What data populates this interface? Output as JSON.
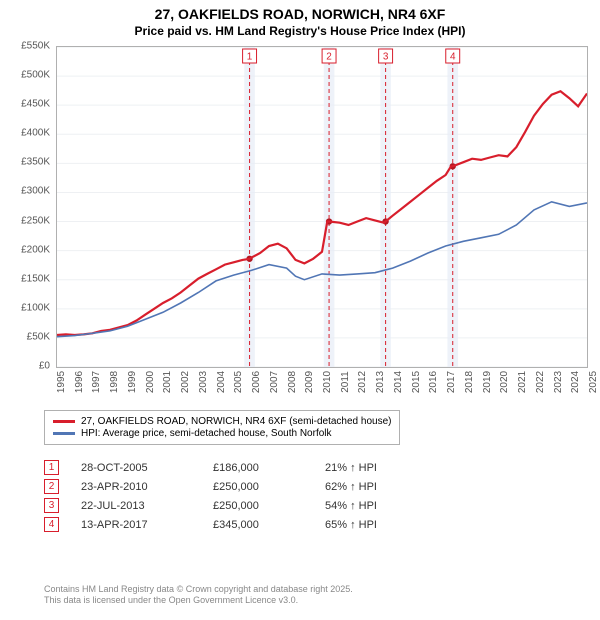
{
  "title": {
    "line1": "27, OAKFIELDS ROAD, NORWICH, NR4 6XF",
    "line2": "Price paid vs. HM Land Registry's House Price Index (HPI)"
  },
  "chart": {
    "background_color": "#ffffff",
    "grid_color": "#eef0f3",
    "border_color": "#b0b0b0",
    "ylim": [
      0,
      550
    ],
    "ytick_step": 50,
    "ylabel_prefix": "£",
    "ylabel_suffix": "K",
    "xlim": [
      1995,
      2025
    ],
    "xticks": [
      1995,
      1996,
      1997,
      1998,
      1999,
      2000,
      2001,
      2002,
      2003,
      2004,
      2005,
      2006,
      2007,
      2008,
      2009,
      2010,
      2011,
      2012,
      2013,
      2014,
      2015,
      2016,
      2017,
      2018,
      2019,
      2020,
      2021,
      2022,
      2023,
      2024,
      2025
    ],
    "shaded_bands": [
      {
        "from": 2005.6,
        "to": 2006.2
      },
      {
        "from": 2010.1,
        "to": 2010.7
      },
      {
        "from": 2013.3,
        "to": 2013.9
      },
      {
        "from": 2017.1,
        "to": 2017.7
      }
    ],
    "event_markers": [
      {
        "n": "1",
        "x": 2005.9,
        "y": 186
      },
      {
        "n": "2",
        "x": 2010.4,
        "y": 250
      },
      {
        "n": "3",
        "x": 2013.6,
        "y": 250
      },
      {
        "n": "4",
        "x": 2017.4,
        "y": 345
      }
    ],
    "series": [
      {
        "name": "price_paid",
        "label": "27, OAKFIELDS ROAD, NORWICH, NR4 6XF (semi-detached house)",
        "color": "#d81e2c",
        "line_width": 2.2,
        "points": [
          [
            1995.0,
            55
          ],
          [
            1995.5,
            56
          ],
          [
            1996.0,
            55
          ],
          [
            1996.5,
            56
          ],
          [
            1997.0,
            58
          ],
          [
            1997.5,
            62
          ],
          [
            1998.0,
            64
          ],
          [
            1998.5,
            68
          ],
          [
            1999.0,
            72
          ],
          [
            1999.5,
            80
          ],
          [
            2000.0,
            90
          ],
          [
            2000.5,
            100
          ],
          [
            2001.0,
            110
          ],
          [
            2001.5,
            118
          ],
          [
            2002.0,
            128
          ],
          [
            2002.5,
            140
          ],
          [
            2003.0,
            152
          ],
          [
            2003.5,
            160
          ],
          [
            2004.0,
            168
          ],
          [
            2004.5,
            176
          ],
          [
            2005.0,
            180
          ],
          [
            2005.5,
            184
          ],
          [
            2005.9,
            186
          ],
          [
            2006.0,
            188
          ],
          [
            2006.5,
            196
          ],
          [
            2007.0,
            208
          ],
          [
            2007.5,
            212
          ],
          [
            2008.0,
            204
          ],
          [
            2008.5,
            184
          ],
          [
            2009.0,
            178
          ],
          [
            2009.5,
            186
          ],
          [
            2010.0,
            198
          ],
          [
            2010.3,
            250
          ],
          [
            2010.4,
            250
          ],
          [
            2011.0,
            248
          ],
          [
            2011.5,
            244
          ],
          [
            2012.0,
            250
          ],
          [
            2012.5,
            256
          ],
          [
            2013.0,
            252
          ],
          [
            2013.5,
            248
          ],
          [
            2013.6,
            250
          ],
          [
            2014.0,
            260
          ],
          [
            2014.5,
            272
          ],
          [
            2015.0,
            284
          ],
          [
            2015.5,
            296
          ],
          [
            2016.0,
            308
          ],
          [
            2016.5,
            320
          ],
          [
            2017.0,
            330
          ],
          [
            2017.3,
            345
          ],
          [
            2017.4,
            345
          ],
          [
            2018.0,
            352
          ],
          [
            2018.5,
            358
          ],
          [
            2019.0,
            356
          ],
          [
            2019.5,
            360
          ],
          [
            2020.0,
            364
          ],
          [
            2020.5,
            362
          ],
          [
            2021.0,
            378
          ],
          [
            2021.5,
            404
          ],
          [
            2022.0,
            432
          ],
          [
            2022.5,
            452
          ],
          [
            2023.0,
            468
          ],
          [
            2023.5,
            474
          ],
          [
            2024.0,
            462
          ],
          [
            2024.5,
            448
          ],
          [
            2025.0,
            470
          ]
        ]
      },
      {
        "name": "hpi",
        "label": "HPI: Average price, semi-detached house, South Norfolk",
        "color": "#5176b5",
        "line_width": 1.6,
        "points": [
          [
            1995.0,
            52
          ],
          [
            1996.0,
            54
          ],
          [
            1997.0,
            58
          ],
          [
            1998.0,
            62
          ],
          [
            1999.0,
            70
          ],
          [
            2000.0,
            82
          ],
          [
            2001.0,
            94
          ],
          [
            2002.0,
            110
          ],
          [
            2003.0,
            128
          ],
          [
            2004.0,
            148
          ],
          [
            2005.0,
            158
          ],
          [
            2006.0,
            166
          ],
          [
            2007.0,
            176
          ],
          [
            2008.0,
            170
          ],
          [
            2008.5,
            156
          ],
          [
            2009.0,
            150
          ],
          [
            2010.0,
            160
          ],
          [
            2011.0,
            158
          ],
          [
            2012.0,
            160
          ],
          [
            2013.0,
            162
          ],
          [
            2014.0,
            170
          ],
          [
            2015.0,
            182
          ],
          [
            2016.0,
            196
          ],
          [
            2017.0,
            208
          ],
          [
            2018.0,
            216
          ],
          [
            2019.0,
            222
          ],
          [
            2020.0,
            228
          ],
          [
            2021.0,
            244
          ],
          [
            2022.0,
            270
          ],
          [
            2023.0,
            284
          ],
          [
            2024.0,
            276
          ],
          [
            2025.0,
            282
          ]
        ]
      }
    ]
  },
  "legend": {
    "items": [
      {
        "color": "#d81e2c",
        "label": "27, OAKFIELDS ROAD, NORWICH, NR4 6XF (semi-detached house)"
      },
      {
        "color": "#5176b5",
        "label": "HPI: Average price, semi-detached house, South Norfolk"
      }
    ]
  },
  "transactions": [
    {
      "n": "1",
      "date": "28-OCT-2005",
      "price": "£186,000",
      "pct": "21% ↑ HPI"
    },
    {
      "n": "2",
      "date": "23-APR-2010",
      "price": "£250,000",
      "pct": "62% ↑ HPI"
    },
    {
      "n": "3",
      "date": "22-JUL-2013",
      "price": "£250,000",
      "pct": "54% ↑ HPI"
    },
    {
      "n": "4",
      "date": "13-APR-2017",
      "price": "£345,000",
      "pct": "65% ↑ HPI"
    }
  ],
  "footer": {
    "line1": "Contains HM Land Registry data © Crown copyright and database right 2025.",
    "line2": "This data is licensed under the Open Government Licence v3.0."
  }
}
